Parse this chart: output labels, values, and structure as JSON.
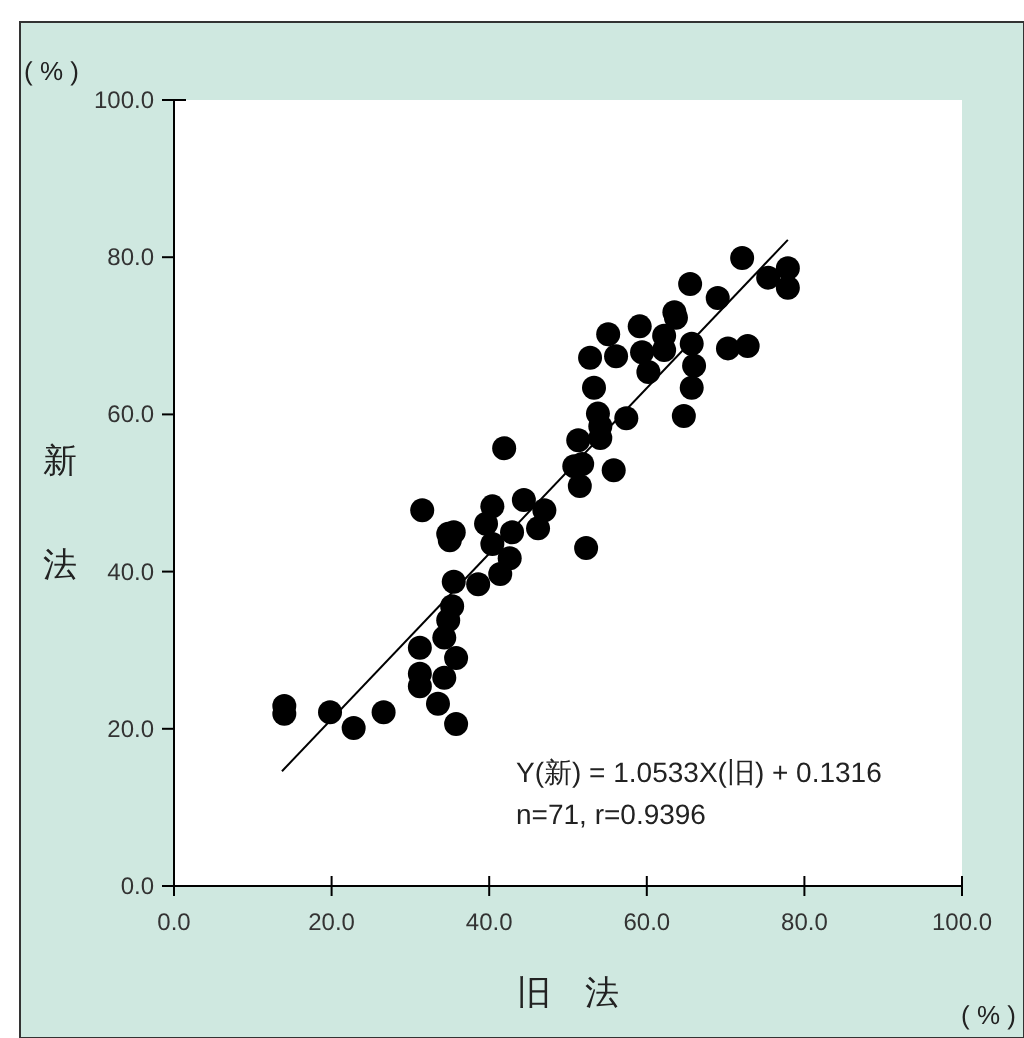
{
  "chart_data": {
    "type": "scatter",
    "xlabel": "旧　法",
    "ylabel": "新法",
    "xlim": [
      0,
      100
    ],
    "ylim": [
      0,
      100
    ],
    "xticks": [
      {
        "value": 0,
        "label": "0.0"
      },
      {
        "value": 20,
        "label": "20.0"
      },
      {
        "value": 40,
        "label": "40.0"
      },
      {
        "value": 60,
        "label": "60.0"
      },
      {
        "value": 80,
        "label": "80.0"
      },
      {
        "value": 100,
        "label": "100.0"
      }
    ],
    "yticks": [
      {
        "value": 0,
        "label": "0.0"
      },
      {
        "value": 20,
        "label": "20.0"
      },
      {
        "value": 40,
        "label": "40.0"
      },
      {
        "value": 60,
        "label": "60.0"
      },
      {
        "value": 80,
        "label": "80.0"
      },
      {
        "value": 100,
        "label": "100.0"
      }
    ],
    "grid": false,
    "series": [
      {
        "color": "#000000",
        "marker": "circle",
        "x": [
          14.0,
          14.0,
          19.8,
          22.8,
          26.6,
          31.2,
          31.2,
          31.2,
          34.3,
          33.5,
          35.8,
          35.8,
          34.3,
          34.8,
          35.3,
          35.5,
          38.6,
          41.4,
          42.6,
          40.4,
          52.3,
          35.0,
          41.9,
          31.5,
          35.5,
          34.8,
          40.4,
          44.4,
          47.0,
          46.2,
          39.6,
          42.9,
          51.3,
          52.8,
          53.3,
          50.8,
          51.5,
          53.8,
          72.1,
          77.9,
          77.9,
          75.4,
          65.5,
          69.0,
          63.5,
          63.7,
          59.1,
          55.1,
          62.2,
          62.2,
          59.4,
          56.1,
          65.7,
          60.2,
          66.0,
          70.3,
          72.8,
          65.7,
          57.4,
          64.7,
          54.1,
          54.1,
          51.8,
          55.8
        ],
        "values": [
          21.9,
          22.9,
          22.1,
          20.1,
          22.1,
          27.0,
          25.4,
          30.3,
          26.5,
          23.2,
          20.6,
          29.0,
          31.6,
          33.8,
          35.6,
          38.7,
          38.4,
          39.7,
          41.7,
          43.5,
          43.0,
          44.0,
          55.7,
          47.8,
          45.0,
          44.8,
          48.3,
          49.1,
          47.8,
          45.5,
          46.1,
          45.0,
          56.7,
          67.2,
          63.4,
          53.4,
          50.9,
          60.1,
          79.9,
          78.6,
          76.1,
          77.4,
          76.6,
          74.8,
          73.0,
          72.3,
          71.2,
          70.2,
          70.0,
          68.2,
          67.9,
          67.4,
          69.0,
          65.4,
          66.2,
          68.4,
          68.7,
          63.4,
          59.5,
          59.8,
          58.5,
          57.0,
          53.7,
          52.9
        ]
      },
      {
        "type": "line",
        "color": "#000000",
        "marker": "none",
        "line_style": "solid",
        "x": [
          13.7,
          77.9
        ],
        "values": [
          14.6,
          82.2
        ]
      }
    ],
    "annotations": [
      "( % )",
      "( % )",
      "Y(新) = 1.0533X(旧) + 0.1316",
      "n=71, r=0.9396"
    ]
  }
}
